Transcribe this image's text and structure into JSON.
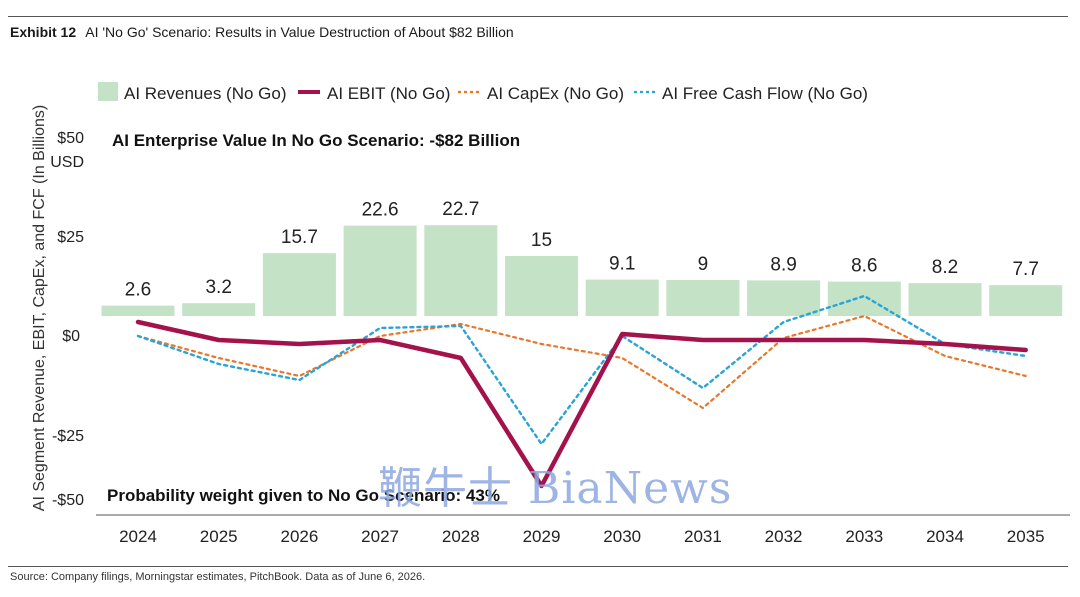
{
  "header": {
    "exhibit": "Exhibit 12",
    "title": "AI 'No Go' Scenario: Results in Value Destruction of About $82 Billion"
  },
  "source": "Source: Company filings, Morningstar estimates, PitchBook. Data as of June 6, 2026.",
  "watermark": "鞭牛士 BiaNews",
  "colors": {
    "revenue": "#c3e2c6",
    "ebit": "#a3124a",
    "capex": "#e8772a",
    "fcf": "#2aa3d6"
  },
  "chart_data": {
    "type": "bar",
    "categories": [
      "2024",
      "2025",
      "2026",
      "2027",
      "2028",
      "2029",
      "2030",
      "2031",
      "2032",
      "2033",
      "2034",
      "2035"
    ],
    "ylabel": "AI Segment Revenue, EBIT, CapEx, and FCF (In Billions)",
    "yunit": "USD",
    "ylim": [
      -50,
      50
    ],
    "yticks": [
      "$50",
      "$25",
      "$0",
      "-$25",
      "-$50"
    ],
    "legend_position": "top",
    "grid": false,
    "annotations": {
      "top": "AI Enterprise Value In No Go Scenario: -$82 Billion",
      "bottom": "Probability weight given to No Go Scenario: 43%"
    },
    "series": [
      {
        "name": "AI Revenues (No Go)",
        "kind": "bar",
        "values": [
          2.6,
          3.2,
          15.7,
          22.6,
          22.7,
          15,
          9.1,
          9,
          8.9,
          8.6,
          8.2,
          7.7
        ],
        "labels": [
          "2.6",
          "3.2",
          "15.7",
          "22.6",
          "22.7",
          "15",
          "9.1",
          "9",
          "8.9",
          "8.6",
          "8.2",
          "7.7"
        ]
      },
      {
        "name": "AI EBIT (No Go)",
        "kind": "line",
        "values": [
          -1.5,
          -6,
          -7,
          -6,
          -10.5,
          -42.5,
          -4.5,
          -6,
          -6,
          -6,
          -7,
          -8.5
        ]
      },
      {
        "name": "AI CapEx (No Go)",
        "kind": "dotted",
        "values": [
          -5,
          -10.5,
          -15,
          -5,
          -2,
          -7,
          -10.5,
          -23,
          -5.5,
          0,
          -10,
          -15
        ]
      },
      {
        "name": "AI Free Cash Flow (No Go)",
        "kind": "dotted",
        "values": [
          -5,
          -12,
          -16,
          -3,
          -2.5,
          -32,
          -5,
          -18,
          -1.5,
          5,
          -7,
          -10
        ]
      }
    ]
  }
}
